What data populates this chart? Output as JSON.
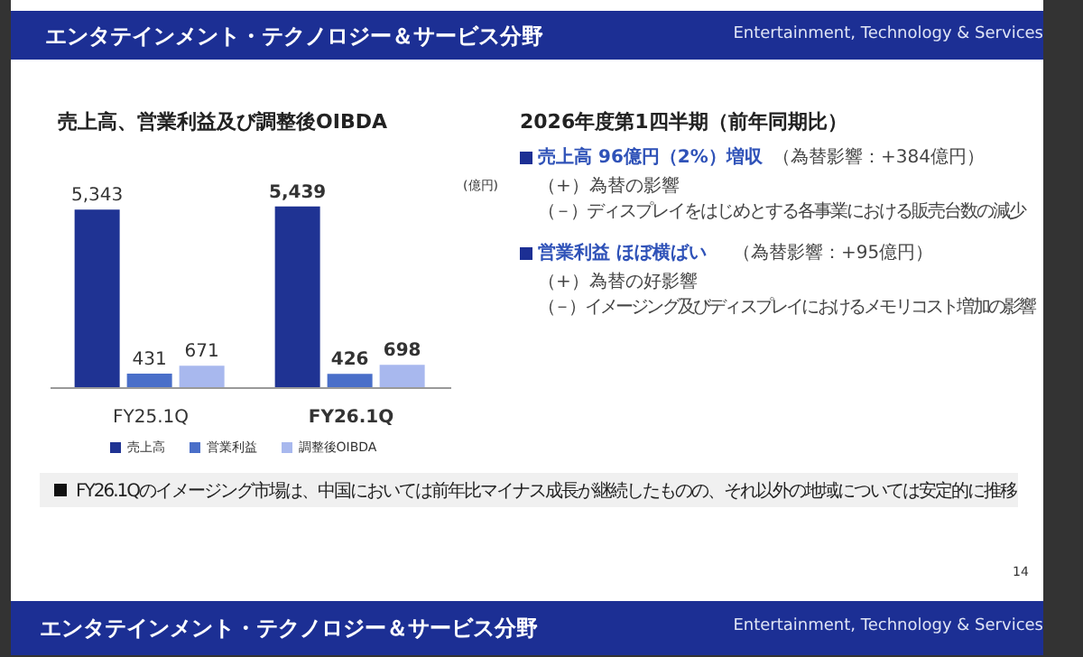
{
  "chart_data": {
    "type": "bar",
    "title": "売上高、営業利益及び調整後OIBDA",
    "categories": [
      "FY25.1Q",
      "FY26.1Q"
    ],
    "series": [
      {
        "name": "売上高",
        "color": "#1f3393",
        "values": [
          5343,
          5439
        ],
        "value_labels": [
          "5,343",
          "5,439"
        ]
      },
      {
        "name": "営業利益",
        "color": "#4a6fc9",
        "values": [
          431,
          426
        ],
        "value_labels": [
          "431",
          "426"
        ]
      },
      {
        "name": "調整後OIBDA",
        "color": "#a8b8ee",
        "values": [
          671,
          698
        ],
        "value_labels": [
          "671",
          "698"
        ]
      }
    ],
    "legend": "bottom",
    "grid": false,
    "annotations": [
      "エンタテインメント・テクノロジー＆サービス分野",
      "Entertainment, Technology & Services",
      "2026年度第1四半期（前年同期比）",
      "売上高 96億円（2%）増収",
      "（為替影響：+384億円）",
      "（+）為替の影響",
      "（－）ディスプレイをはじめとする各事業における販売台数の減少",
      "営業利益 ほぼ横ばい",
      "（為替影響：+95億円）",
      "（+）為替の好影響",
      "（－）イメージング及びディスプレイにおけるメモリコスト増加の影響",
      "FY26.1Qのイメージング市場は、中国においては前年比マイナス成長が継続したものの、それ以外の地域については安定的に推移",
      "14",
      "エンタテインメント・テクノロジー＆サービス分野",
      "Entertainment, Technology & Services",
      "(億円)"
    ]
  }
}
